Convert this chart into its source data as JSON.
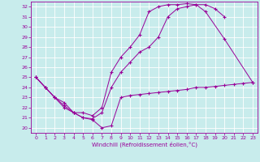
{
  "xlabel": "Windchill (Refroidissement éolien,°C)",
  "bg_color": "#c8ecec",
  "line_color": "#990099",
  "grid_color": "#ffffff",
  "xlim": [
    -0.5,
    23.5
  ],
  "ylim": [
    19.5,
    32.5
  ],
  "yticks": [
    20,
    21,
    22,
    23,
    24,
    25,
    26,
    27,
    28,
    29,
    30,
    31,
    32
  ],
  "xticks": [
    0,
    1,
    2,
    3,
    4,
    5,
    6,
    7,
    8,
    9,
    10,
    11,
    12,
    13,
    14,
    15,
    16,
    17,
    18,
    19,
    20,
    21,
    22,
    23
  ],
  "line1_x": [
    0,
    1,
    2,
    3,
    4,
    5,
    6,
    7,
    8,
    9,
    10,
    11,
    12,
    13,
    14,
    15,
    16,
    17,
    18,
    19,
    20,
    21,
    22,
    23
  ],
  "line1_y": [
    25.0,
    24.0,
    23.0,
    22.0,
    21.5,
    21.0,
    20.8,
    20.0,
    20.2,
    23.0,
    23.2,
    23.3,
    23.4,
    23.5,
    23.6,
    23.7,
    23.8,
    24.0,
    24.0,
    24.1,
    24.2,
    24.3,
    24.4,
    24.5
  ],
  "line2_x": [
    0,
    1,
    2,
    3,
    4,
    5,
    6,
    7,
    8,
    9,
    10,
    11,
    12,
    13,
    14,
    15,
    16,
    17,
    18,
    20,
    23
  ],
  "line2_y": [
    25.0,
    24.0,
    23.0,
    22.2,
    21.5,
    21.5,
    21.2,
    22.0,
    25.5,
    27.0,
    28.0,
    29.2,
    31.5,
    32.0,
    32.2,
    32.2,
    32.3,
    32.2,
    31.5,
    28.8,
    24.5
  ],
  "line3_x": [
    0,
    1,
    2,
    3,
    4,
    5,
    6,
    7,
    8,
    9,
    10,
    11,
    12,
    13,
    14,
    15,
    16,
    17,
    18,
    19,
    20
  ],
  "line3_y": [
    25.0,
    24.0,
    23.0,
    22.5,
    21.5,
    21.0,
    20.9,
    21.5,
    24.0,
    25.5,
    26.5,
    27.5,
    28.0,
    29.0,
    31.0,
    31.8,
    32.0,
    32.2,
    32.2,
    31.8,
    31.0
  ]
}
